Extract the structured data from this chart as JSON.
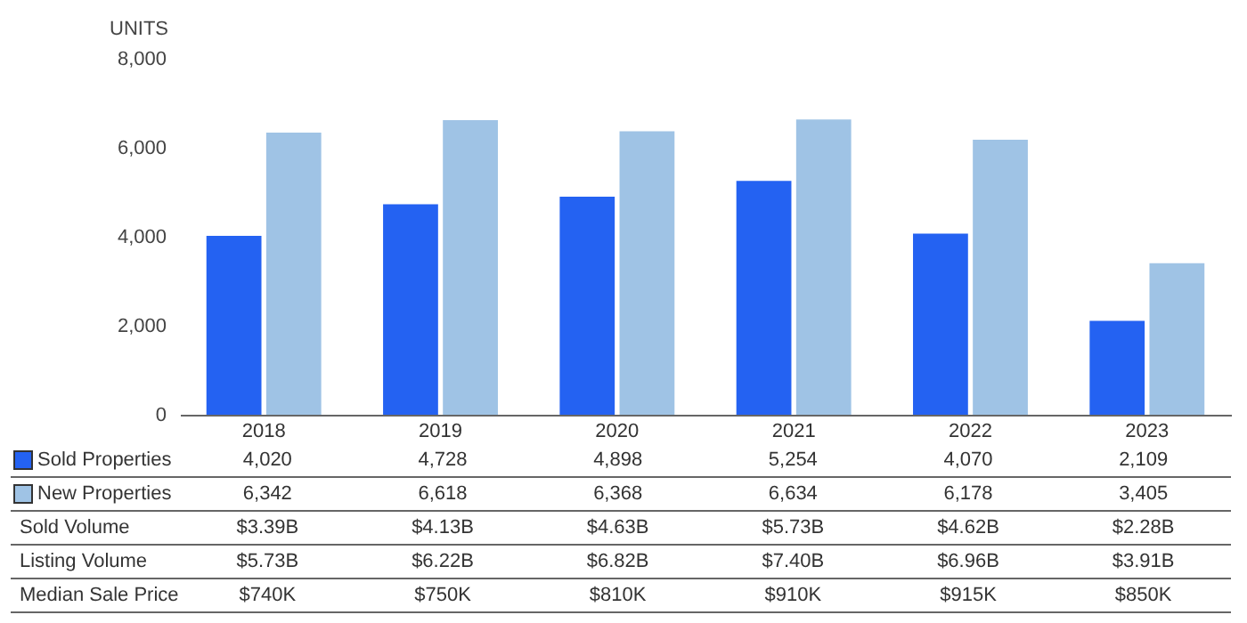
{
  "chart_data": {
    "type": "bar",
    "ylabel": "UNITS",
    "categories": [
      "2018",
      "2019",
      "2020",
      "2021",
      "2022",
      "2023"
    ],
    "series": [
      {
        "name": "Sold Properties",
        "color": "#2462f2",
        "values": [
          4020,
          4728,
          4898,
          5254,
          4070,
          2109
        ],
        "value_labels": [
          "4,020",
          "4,728",
          "4,898",
          "5,254",
          "4,070",
          "2,109"
        ]
      },
      {
        "name": "New Properties",
        "color": "#9fc3e5",
        "values": [
          6342,
          6618,
          6368,
          6634,
          6178,
          3405
        ],
        "value_labels": [
          "6,342",
          "6,618",
          "6,368",
          "6,634",
          "6,178",
          "3,405"
        ]
      }
    ],
    "ylim": [
      0,
      8000
    ],
    "yticks": [
      {
        "value": 0,
        "label": "0"
      },
      {
        "value": 2000,
        "label": "2,000"
      },
      {
        "value": 4000,
        "label": "4,000"
      },
      {
        "value": 6000,
        "label": "6,000"
      },
      {
        "value": 8000,
        "label": "8,000"
      }
    ],
    "grid": false,
    "legend": "bottom left",
    "annotations": [
      "Sold Volume",
      "$3.39B",
      "$4.13B",
      "$4.63B",
      "$5.73B",
      "$4.62B",
      "$2.28B",
      "Listing Volume",
      "$5.73B",
      "$6.22B",
      "$6.82B",
      "$7.40B",
      "$6.96B",
      "$3.91B",
      "Median Sale Price",
      "$740K",
      "$750K",
      "$810K",
      "$910K",
      "$915K",
      "$850K"
    ]
  }
}
